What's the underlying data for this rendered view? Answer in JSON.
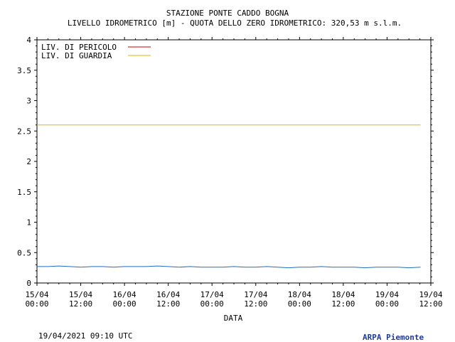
{
  "title_line1": "STAZIONE PONTE CADDO BOGNA",
  "title_line2": "LIVELLO IDROMETRICO [m] - QUOTA DELLO ZERO IDROMETRICO: 320,53  m s.l.m.",
  "footer": {
    "timestamp": "19/04/2021 09:10 UTC",
    "agency": "ARPA Piemonte"
  },
  "colors": {
    "pericolo": "#cc0000",
    "guardia": "#e8b000",
    "level": "#1f6fc4"
  },
  "chart_data": {
    "type": "line",
    "title": "STAZIONE PONTE CADDO BOGNA",
    "subtitle": "LIVELLO IDROMETRICO [m] - QUOTA DELLO ZERO IDROMETRICO: 320,53  m s.l.m.",
    "xlabel": "DATA",
    "ylabel": "",
    "ylim": [
      0,
      4
    ],
    "xlim": [
      "2021-04-15 00:00",
      "2021-04-19 12:00"
    ],
    "y_ticks": [
      "0",
      "0.5",
      "1",
      "1.5",
      "2",
      "2.5",
      "3",
      "3.5",
      "4"
    ],
    "x_ticks": [
      {
        "date": "15/04",
        "time": "00:00"
      },
      {
        "date": "15/04",
        "time": "12:00"
      },
      {
        "date": "16/04",
        "time": "00:00"
      },
      {
        "date": "16/04",
        "time": "12:00"
      },
      {
        "date": "17/04",
        "time": "00:00"
      },
      {
        "date": "17/04",
        "time": "12:00"
      },
      {
        "date": "18/04",
        "time": "00:00"
      },
      {
        "date": "18/04",
        "time": "12:00"
      },
      {
        "date": "19/04",
        "time": "00:00"
      },
      {
        "date": "19/04",
        "time": "12:00"
      }
    ],
    "legend_position": "top-left",
    "grid": false,
    "series": [
      {
        "name": "LIV. DI PERICOLO",
        "color": "#cc0000",
        "visible_in_plot": false,
        "x": [],
        "y": []
      },
      {
        "name": "LIV. DI GUARDIA",
        "color": "#e8b000",
        "x": [
          "2021-04-15 00:00",
          "2021-04-19 09:10"
        ],
        "y": [
          2.6,
          2.6
        ]
      },
      {
        "name": "",
        "color": "#1f6fc4",
        "x": [
          "2021-04-15 00:00",
          "2021-04-15 03:00",
          "2021-04-15 06:00",
          "2021-04-15 09:00",
          "2021-04-15 12:00",
          "2021-04-15 15:00",
          "2021-04-15 18:00",
          "2021-04-15 21:00",
          "2021-04-16 00:00",
          "2021-04-16 03:00",
          "2021-04-16 06:00",
          "2021-04-16 09:00",
          "2021-04-16 12:00",
          "2021-04-16 15:00",
          "2021-04-16 18:00",
          "2021-04-16 21:00",
          "2021-04-17 00:00",
          "2021-04-17 03:00",
          "2021-04-17 06:00",
          "2021-04-17 09:00",
          "2021-04-17 12:00",
          "2021-04-17 15:00",
          "2021-04-17 18:00",
          "2021-04-17 21:00",
          "2021-04-18 00:00",
          "2021-04-18 03:00",
          "2021-04-18 06:00",
          "2021-04-18 09:00",
          "2021-04-18 12:00",
          "2021-04-18 15:00",
          "2021-04-18 18:00",
          "2021-04-18 21:00",
          "2021-04-19 00:00",
          "2021-04-19 03:00",
          "2021-04-19 06:00",
          "2021-04-19 09:10"
        ],
        "y": [
          0.27,
          0.27,
          0.28,
          0.27,
          0.26,
          0.27,
          0.27,
          0.26,
          0.27,
          0.27,
          0.27,
          0.28,
          0.27,
          0.26,
          0.27,
          0.26,
          0.26,
          0.26,
          0.27,
          0.26,
          0.26,
          0.27,
          0.26,
          0.25,
          0.26,
          0.26,
          0.27,
          0.26,
          0.26,
          0.26,
          0.25,
          0.26,
          0.26,
          0.26,
          0.25,
          0.26
        ]
      }
    ]
  }
}
